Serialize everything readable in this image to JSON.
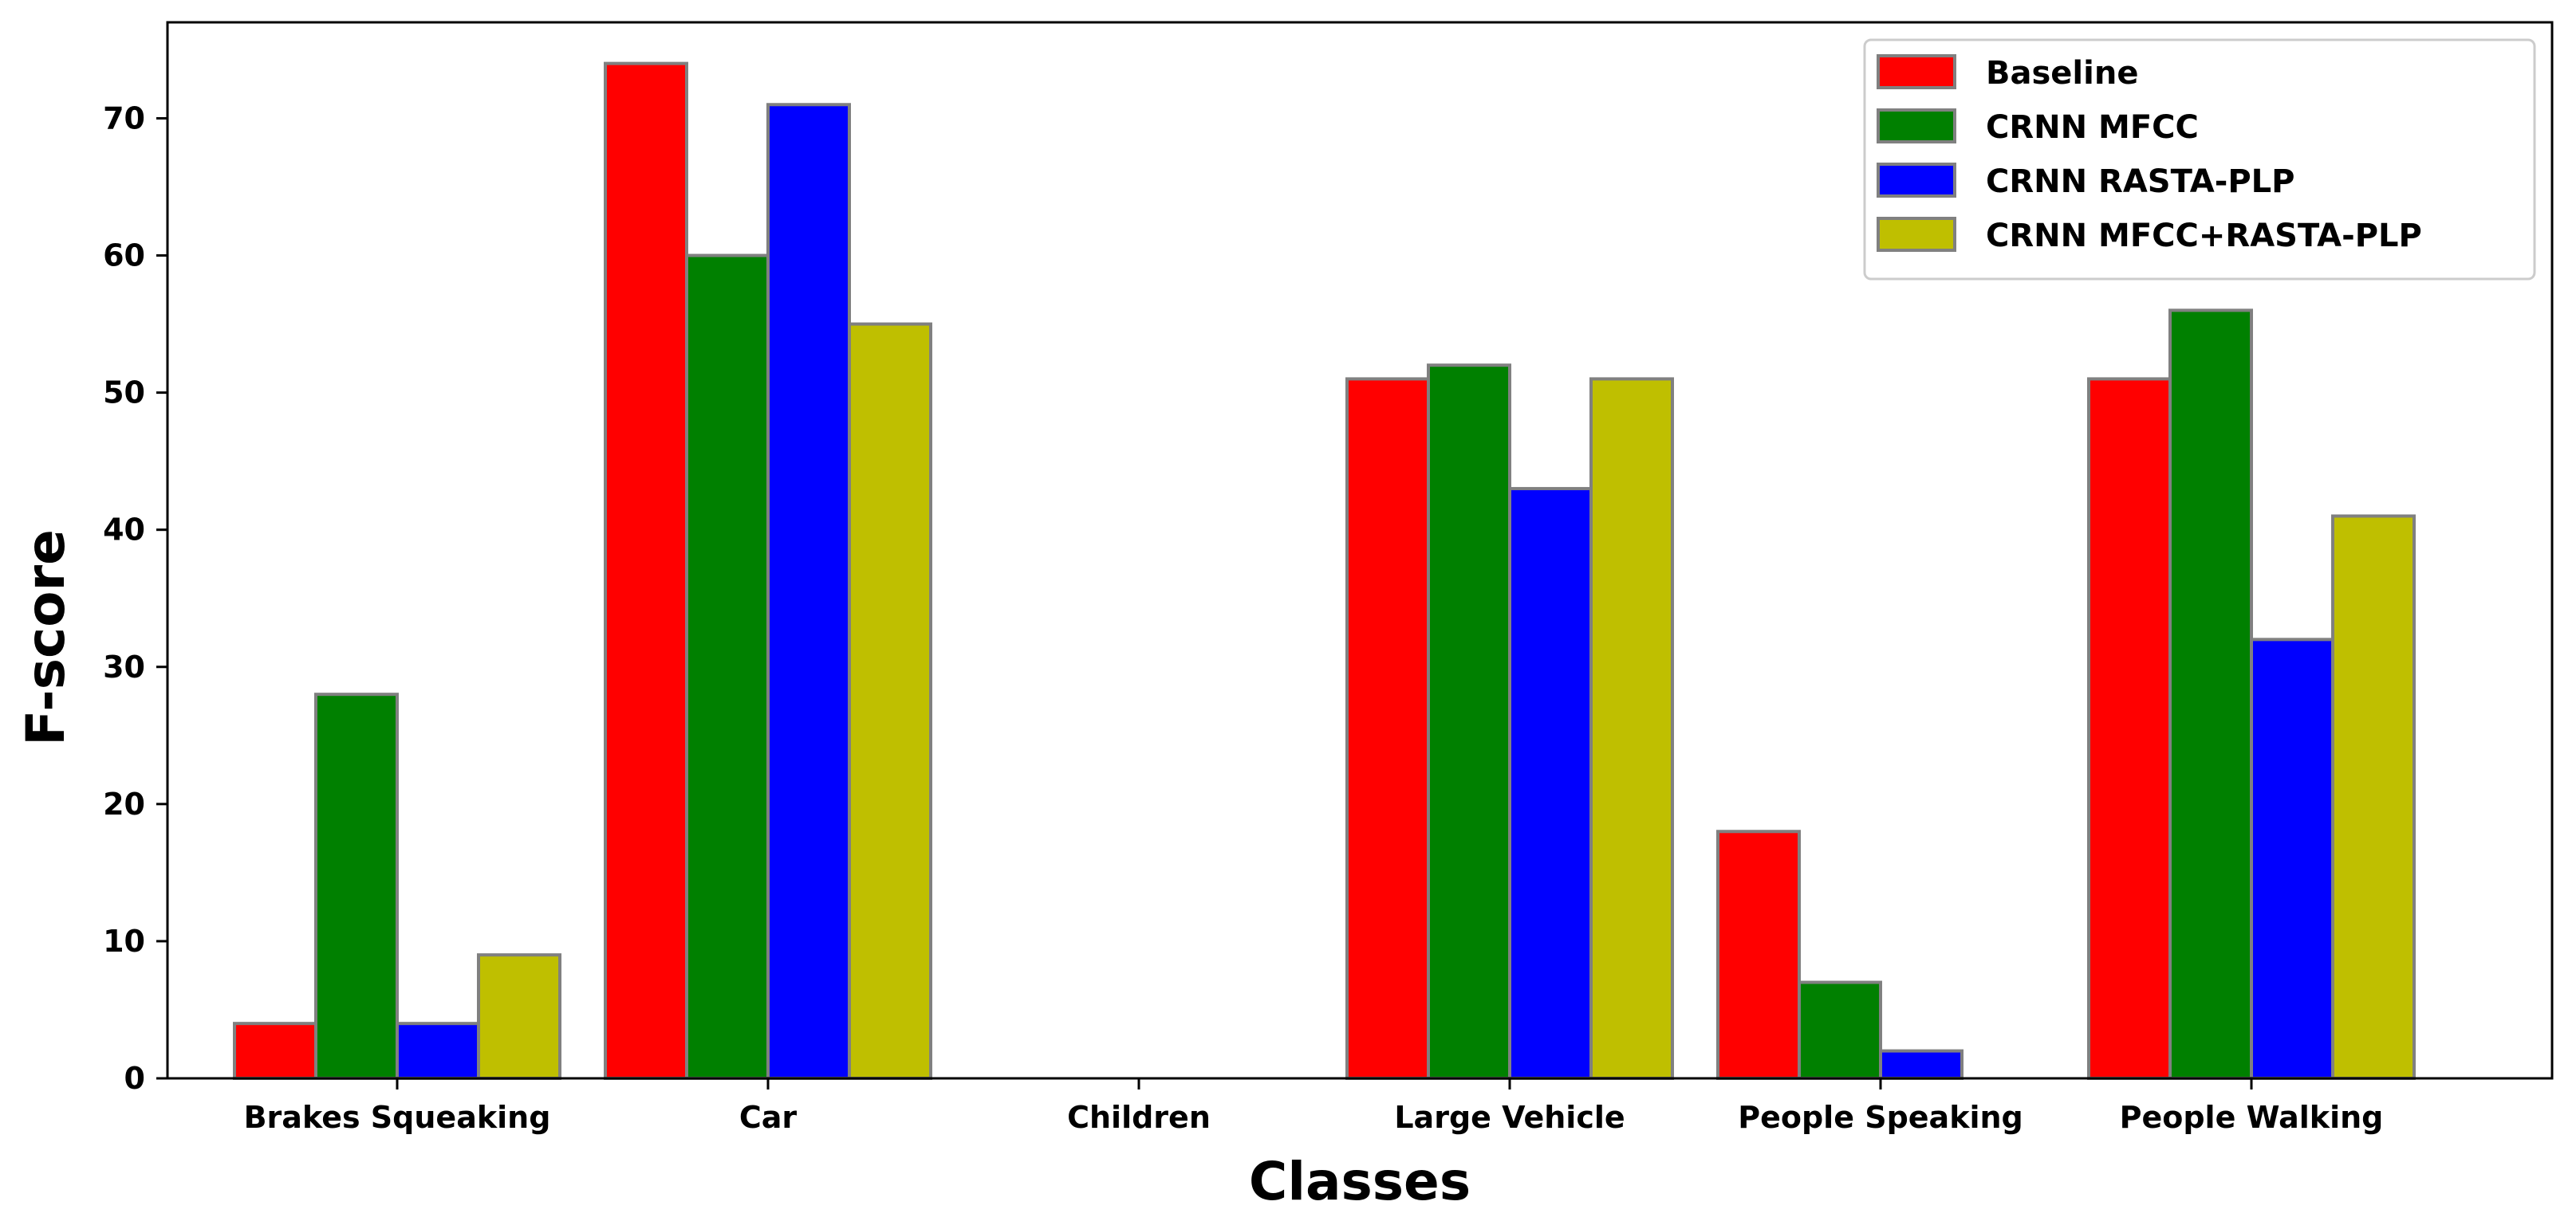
{
  "chart_data": {
    "type": "bar",
    "title": "",
    "xlabel": "Classes",
    "ylabel": "F-score",
    "ylim": [
      0,
      77
    ],
    "yticks": [
      0,
      10,
      20,
      30,
      40,
      50,
      60,
      70
    ],
    "categories": [
      "Brakes Squeaking",
      "Car",
      "Children",
      "Large Vehicle",
      "People Speaking",
      "People Walking"
    ],
    "series": [
      {
        "name": "Baseline",
        "color": "#ff0000",
        "values": [
          4,
          74,
          0,
          51,
          18,
          51
        ]
      },
      {
        "name": "CRNN MFCC",
        "color": "#008000",
        "values": [
          28,
          60,
          0,
          52,
          7,
          56
        ]
      },
      {
        "name": "CRNN RASTA-PLP",
        "color": "#0000ff",
        "values": [
          4,
          71,
          0,
          43,
          2,
          32
        ]
      },
      {
        "name": "CRNN MFCC+RASTA-PLP",
        "color": "#bfbf00",
        "values": [
          9,
          55,
          0,
          51,
          0,
          41
        ]
      }
    ],
    "legend_position": "top-right",
    "grid": false,
    "bar_edge_color": "#808080"
  }
}
